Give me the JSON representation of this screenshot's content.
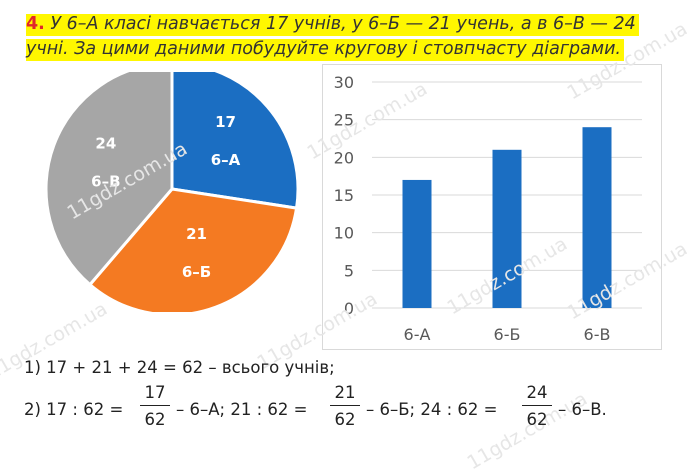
{
  "task": {
    "number": "4.",
    "line1": "У 6–А класі навчається 17 учнів, у 6–Б — 21 учень, а в 6–В — 24",
    "line2": "учні. За цими даними побудуйте кругову і стовпчасту діаграми."
  },
  "chart_data": [
    {
      "type": "pie",
      "slices": [
        {
          "value": 17,
          "label": "6–А",
          "color": "#1b6ec2"
        },
        {
          "value": 21,
          "label": "6–Б",
          "color": "#f47a22"
        },
        {
          "value": 24,
          "label": "6–В",
          "color": "#a6a6a6"
        }
      ]
    },
    {
      "type": "bar",
      "categories": [
        "6-А",
        "6-Б",
        "6-В"
      ],
      "values": [
        17,
        21,
        24
      ],
      "ylim": [
        0,
        30
      ],
      "yticks": [
        0,
        5,
        10,
        15,
        20,
        25,
        30
      ],
      "grid": true,
      "color": "#1b6ec2"
    }
  ],
  "solution": {
    "line1": "1) 17 + 21 + 24 = 62 – всього учнів;",
    "l2_prefix": "2) 17 : 62 =",
    "f1_num": "17",
    "f1_den": "62",
    "l2_mid1": "– 6–А; 21 : 62 =",
    "f2_num": "21",
    "f2_den": "62",
    "l2_mid2": "– 6–Б; 24 : 62 =",
    "f3_num": "24",
    "f3_den": "62",
    "l2_end": "– 6–В."
  },
  "watermark": "11gdz.com.ua"
}
